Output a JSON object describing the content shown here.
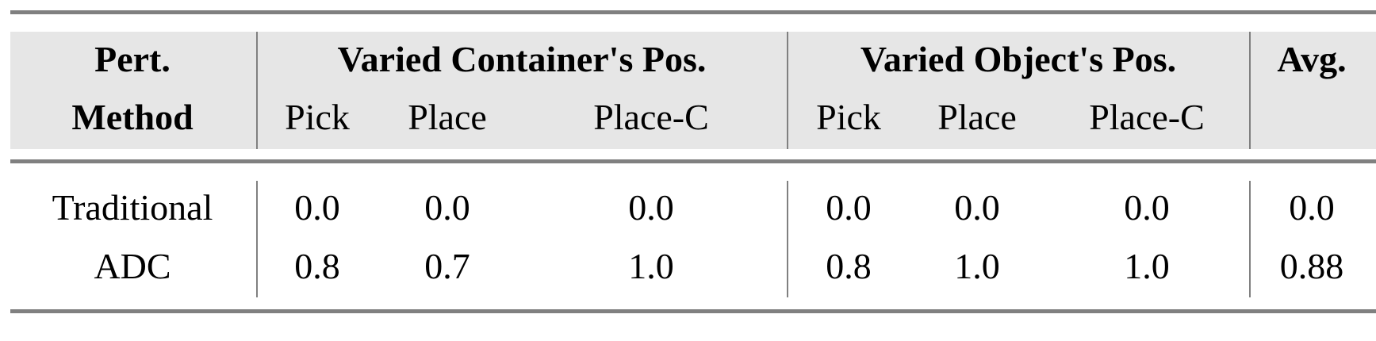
{
  "table": {
    "header": {
      "method_line1": "Pert.",
      "method_line2": "Method",
      "group_container": "Varied Container's Pos.",
      "group_object": "Varied Object's Pos.",
      "avg": "Avg.",
      "sub": [
        "Pick",
        "Place",
        "Place-C",
        "Pick",
        "Place",
        "Place-C"
      ]
    },
    "rows": [
      {
        "method": "Traditional",
        "values": [
          "0.0",
          "0.0",
          "0.0",
          "0.0",
          "0.0",
          "0.0",
          "0.0"
        ]
      },
      {
        "method": "ADC",
        "values": [
          "0.8",
          "0.7",
          "1.0",
          "0.8",
          "1.0",
          "1.0",
          "0.88"
        ]
      }
    ]
  },
  "colors": {
    "header_bg": "#e6e6e6",
    "rule": "#808080"
  }
}
